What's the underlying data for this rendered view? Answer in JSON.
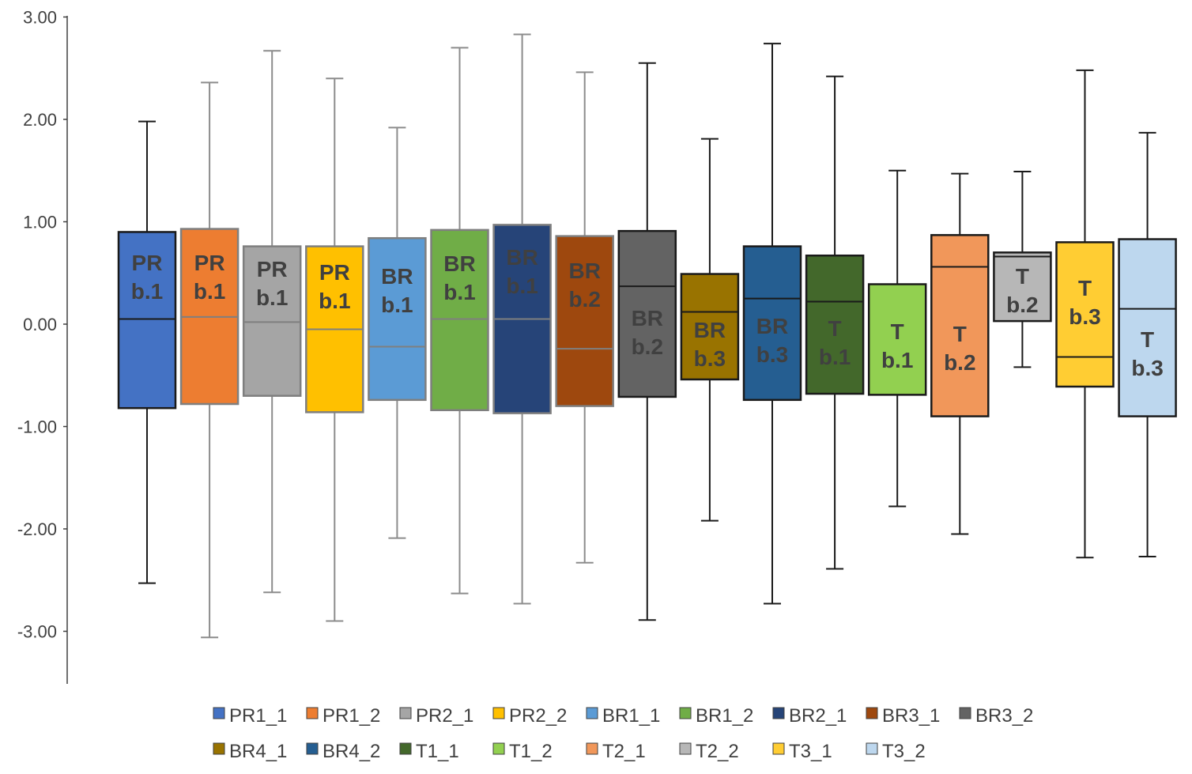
{
  "chart_data": {
    "type": "boxplot",
    "title": "",
    "xlabel": "",
    "ylabel": "",
    "ylim": [
      -3.5,
      3.0
    ],
    "yticks": [
      "3.00",
      "2.00",
      "1.00",
      "0.00",
      "-1.00",
      "-2.00",
      "-3.00"
    ],
    "ytick_values": [
      3,
      2,
      1,
      0,
      -1,
      -2,
      -3
    ],
    "grid": false,
    "legend_position": "bottom",
    "series": [
      {
        "name": "PR1_1",
        "color": "#4472C4",
        "label": [
          "PR",
          "b.1"
        ],
        "whisker_high": 1.98,
        "q3": 0.9,
        "median": 0.05,
        "q1": -0.82,
        "whisker_low": -2.53
      },
      {
        "name": "PR1_2",
        "color": "#ED7D31",
        "label": [
          "PR",
          "b.1"
        ],
        "whisker_high": 2.36,
        "q3": 0.93,
        "median": 0.07,
        "q1": -0.78,
        "whisker_low": -3.06
      },
      {
        "name": "PR2_1",
        "color": "#A5A5A5",
        "label": [
          "PR",
          "b.1"
        ],
        "whisker_high": 2.67,
        "q3": 0.76,
        "median": 0.02,
        "q1": -0.7,
        "whisker_low": -2.62
      },
      {
        "name": "PR2_2",
        "color": "#FFC000",
        "label": [
          "PR",
          "b.1"
        ],
        "whisker_high": 2.4,
        "q3": 0.76,
        "median": -0.05,
        "q1": -0.86,
        "whisker_low": -2.9
      },
      {
        "name": "BR1_1",
        "color": "#5B9BD5",
        "label": [
          "BR",
          "b.1"
        ],
        "whisker_high": 1.92,
        "q3": 0.84,
        "median": -0.22,
        "q1": -0.74,
        "whisker_low": -2.09
      },
      {
        "name": "BR1_2",
        "color": "#70AD47",
        "label": [
          "BR",
          "b.1"
        ],
        "whisker_high": 2.7,
        "q3": 0.92,
        "median": 0.05,
        "q1": -0.84,
        "whisker_low": -2.63
      },
      {
        "name": "BR2_1",
        "color": "#264478",
        "label": [
          "BR",
          "b.1"
        ],
        "whisker_high": 2.83,
        "q3": 0.97,
        "median": 0.05,
        "q1": -0.87,
        "whisker_low": -2.73
      },
      {
        "name": "BR3_1",
        "color": "#9E480E",
        "label": [
          "BR",
          "b.2"
        ],
        "whisker_high": 2.46,
        "q3": 0.86,
        "median": -0.24,
        "q1": -0.8,
        "whisker_low": -2.33
      },
      {
        "name": "BR3_2",
        "color": "#636363",
        "label": [
          "BR",
          "b.2"
        ],
        "whisker_high": 2.55,
        "q3": 0.91,
        "median": 0.37,
        "q1": -0.71,
        "whisker_low": -2.89
      },
      {
        "name": "BR4_1",
        "color": "#997300",
        "label": [
          "BR",
          "b.3"
        ],
        "whisker_high": 1.81,
        "q3": 0.49,
        "median": 0.12,
        "q1": -0.54,
        "whisker_low": -1.92
      },
      {
        "name": "BR4_2",
        "color": "#255E91",
        "label": [
          "BR",
          "b.3"
        ],
        "whisker_high": 2.74,
        "q3": 0.76,
        "median": 0.25,
        "q1": -0.74,
        "whisker_low": -2.73
      },
      {
        "name": "T1_1",
        "color": "#43682B",
        "label": [
          "T",
          "b.1"
        ],
        "whisker_high": 2.42,
        "q3": 0.67,
        "median": 0.22,
        "q1": -0.68,
        "whisker_low": -2.39
      },
      {
        "name": "T1_2",
        "color": "#92D050",
        "label": [
          "T",
          "b.1"
        ],
        "whisker_high": 1.5,
        "q3": 0.39,
        "median": 0.39,
        "q1": -0.69,
        "whisker_low": -1.78
      },
      {
        "name": "T2_1",
        "color": "#F1975A",
        "label": [
          "T",
          "b.2"
        ],
        "whisker_high": 1.47,
        "q3": 0.87,
        "median": 0.56,
        "q1": -0.9,
        "whisker_low": -2.05
      },
      {
        "name": "T2_2",
        "color": "#B7B7B7",
        "label": [
          "T",
          "b.2"
        ],
        "whisker_high": 1.49,
        "q3": 0.7,
        "median": 0.66,
        "q1": 0.03,
        "whisker_low": -0.42
      },
      {
        "name": "T3_1",
        "color": "#FFCD33",
        "label": [
          "T",
          "b.3"
        ],
        "whisker_high": 2.48,
        "q3": 0.8,
        "median": -0.32,
        "q1": -0.61,
        "whisker_low": -2.28
      },
      {
        "name": "T3_2",
        "color": "#BDD7EE",
        "label": [
          "T",
          "b.3"
        ],
        "whisker_high": 1.87,
        "q3": 0.83,
        "median": 0.15,
        "q1": -0.9,
        "whisker_low": -2.27
      }
    ]
  }
}
